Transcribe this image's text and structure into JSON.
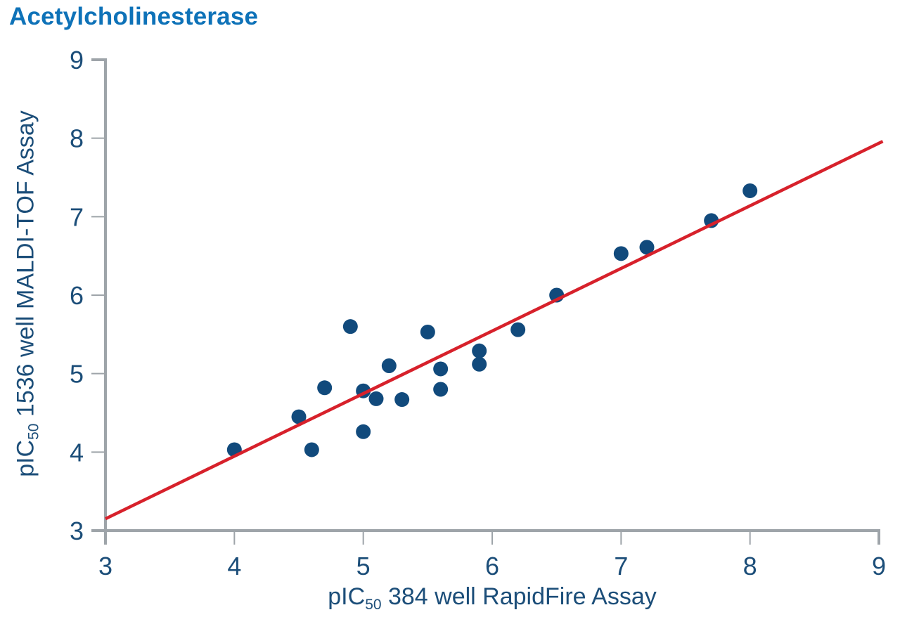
{
  "title": "Acetylcholinesterase",
  "colors": {
    "title": "#0E72B8",
    "axis_text": "#1C4E79",
    "dot": "#114A7C",
    "trend_line": "#D7212B",
    "axis_line": "#9EA4A9"
  },
  "chart_data": {
    "type": "scatter",
    "title": "Acetylcholinesterase",
    "xlabel": {
      "prefix": "pIC",
      "sub": "50",
      "rest": " 384 well RapidFire Assay"
    },
    "ylabel": {
      "prefix": "pIC",
      "sub": "50",
      "rest": " 1536 well MALDI-TOF Assay"
    },
    "xlim": [
      3,
      9
    ],
    "ylim": [
      3,
      9
    ],
    "xticks": [
      3,
      4,
      5,
      6,
      7,
      8,
      9
    ],
    "yticks": [
      3,
      4,
      5,
      6,
      7,
      8,
      9
    ],
    "grid": false,
    "legend": "none",
    "points": [
      [
        4.0,
        4.03
      ],
      [
        4.5,
        4.45
      ],
      [
        4.6,
        4.03
      ],
      [
        4.7,
        4.82
      ],
      [
        4.9,
        5.6
      ],
      [
        5.0,
        4.26
      ],
      [
        5.0,
        4.78
      ],
      [
        5.1,
        4.68
      ],
      [
        5.2,
        5.1
      ],
      [
        5.3,
        4.67
      ],
      [
        5.5,
        5.53
      ],
      [
        5.6,
        5.06
      ],
      [
        5.6,
        4.8
      ],
      [
        5.9,
        5.29
      ],
      [
        5.9,
        5.12
      ],
      [
        6.2,
        5.56
      ],
      [
        6.5,
        6.0
      ],
      [
        7.0,
        6.53
      ],
      [
        7.2,
        6.61
      ],
      [
        7.7,
        6.95
      ],
      [
        8.0,
        7.33
      ]
    ],
    "trend_line": {
      "x1": 3.0,
      "y1": 3.15,
      "x2": 9.03,
      "y2": 7.96
    }
  }
}
